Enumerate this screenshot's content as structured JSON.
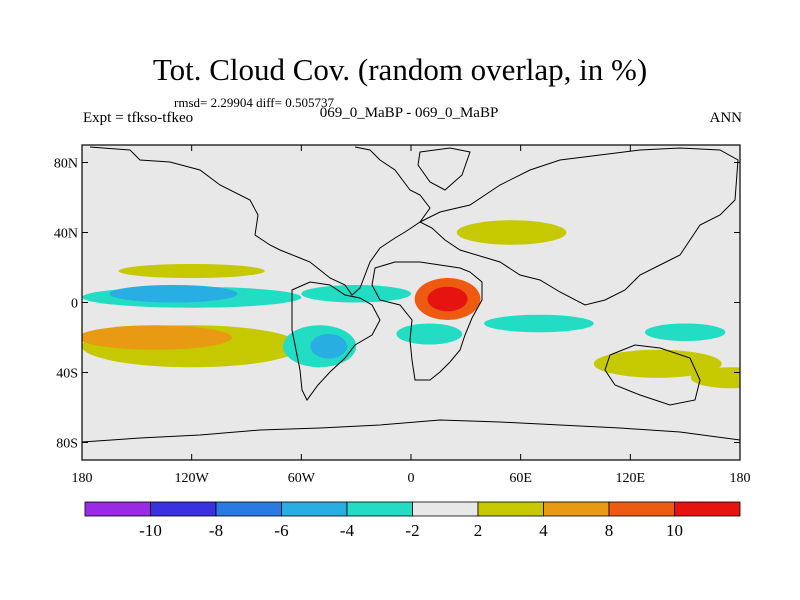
{
  "chart_data": {
    "type": "heatmap",
    "title": "Tot. Cloud Cov. (random overlap, in %)",
    "stats_text": "rmsd= 2.29904 diff= 0.505737",
    "left_string": "Expt = tfkso-tfkeo",
    "center_string": "069_0_MaBP - 069_0_MaBP",
    "right_string": "ANN",
    "x_ticks": [
      "180",
      "120W",
      "60W",
      "0",
      "60E",
      "120E",
      "180"
    ],
    "x_tick_values": [
      -180,
      -120,
      -60,
      0,
      60,
      120,
      180
    ],
    "y_ticks": [
      "80N",
      "40N",
      "0",
      "40S",
      "80S"
    ],
    "y_tick_values": [
      80,
      40,
      0,
      -40,
      -80
    ],
    "xlim": [
      -180,
      180
    ],
    "ylim": [
      -90,
      90
    ],
    "colorbar": {
      "labels": [
        "-10",
        "-8",
        "-6",
        "-4",
        "-2",
        "2",
        "4",
        "8",
        "10"
      ],
      "levels": [
        -10,
        -8,
        -6,
        -4,
        -2,
        2,
        4,
        8,
        10
      ],
      "colors": [
        "#9a2ae6",
        "#3a32e0",
        "#2a7ae6",
        "#28aee2",
        "#22dcc4",
        "#e8e8e8",
        "#c6c800",
        "#e89a12",
        "#ee5a10",
        "#e61410"
      ]
    },
    "background_color": "#e8e8e8",
    "anomalies": [
      {
        "lon": 20,
        "lat": 2,
        "rx": 18,
        "ry": 12,
        "level": 3,
        "name": "africa-red-center"
      },
      {
        "lon": 20,
        "lat": 2,
        "rx": 11,
        "ry": 7,
        "level": 4,
        "name": "africa-red-core"
      },
      {
        "lon": -140,
        "lat": -20,
        "rx": 42,
        "ry": 7,
        "level": 2,
        "name": "south-pacific-orange"
      },
      {
        "lon": -120,
        "lat": -25,
        "rx": 60,
        "ry": 12,
        "level": 1,
        "name": "south-pacific-yellow"
      },
      {
        "lon": -130,
        "lat": 5,
        "rx": 35,
        "ry": 5,
        "level": -3,
        "name": "itcz-blue"
      },
      {
        "lon": -120,
        "lat": 3,
        "rx": 60,
        "ry": 6,
        "level": -2,
        "name": "itcz-cyan"
      },
      {
        "lon": -45,
        "lat": -25,
        "rx": 10,
        "ry": 7,
        "level": -3,
        "name": "brazil-blue"
      },
      {
        "lon": -50,
        "lat": -25,
        "rx": 20,
        "ry": 12,
        "level": -2,
        "name": "brazil-cyan"
      },
      {
        "lon": -120,
        "lat": 18,
        "rx": 40,
        "ry": 4,
        "level": 1,
        "name": "north-pacific-yellow"
      },
      {
        "lon": 55,
        "lat": 40,
        "rx": 30,
        "ry": 7,
        "level": 1,
        "name": "asia-yellow"
      },
      {
        "lon": 135,
        "lat": -35,
        "rx": 35,
        "ry": 8,
        "level": 1,
        "name": "australia-yellow"
      },
      {
        "lon": 150,
        "lat": -17,
        "rx": 22,
        "ry": 5,
        "level": -2,
        "name": "west-pacific-cyan"
      },
      {
        "lon": 70,
        "lat": -12,
        "rx": 30,
        "ry": 5,
        "level": -2,
        "name": "indian-ocean-cyan"
      },
      {
        "lon": 10,
        "lat": -18,
        "rx": 18,
        "ry": 6,
        "level": -2,
        "name": "atlantic-cyan"
      },
      {
        "lon": 175,
        "lat": -43,
        "rx": 22,
        "ry": 6,
        "level": 1,
        "name": "tasman-yellow"
      },
      {
        "lon": -30,
        "lat": 5,
        "rx": 30,
        "ry": 5,
        "level": -2,
        "name": "atlantic-itcz-cyan"
      }
    ]
  }
}
